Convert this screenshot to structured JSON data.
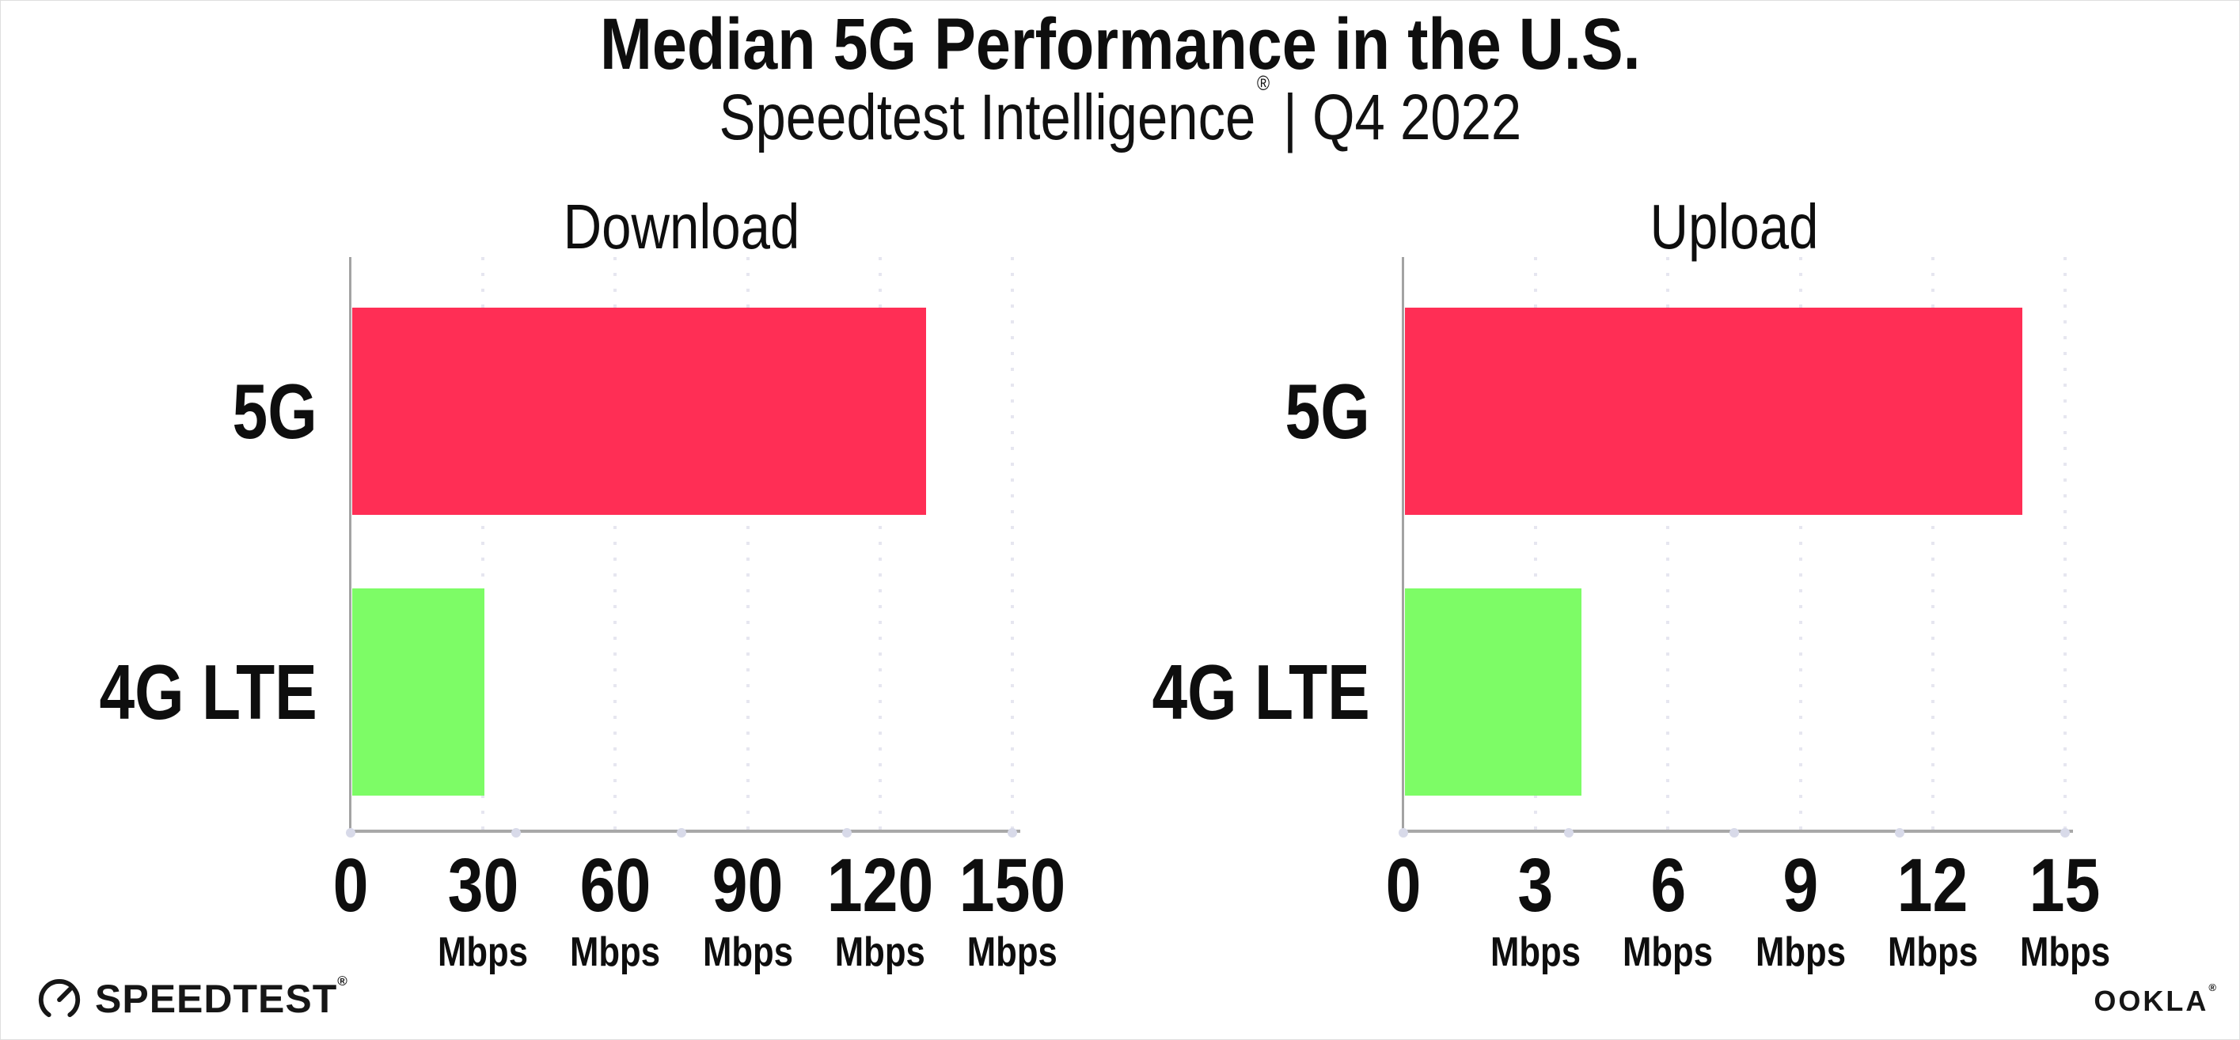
{
  "header": {
    "title": "Median 5G Performance in the U.S.",
    "subtitle_brand": "Speedtest Intelligence",
    "subtitle_reg": "®",
    "subtitle_rest": "| Q4 2022"
  },
  "colors": {
    "bar_5g": "#ff2e55",
    "bar_4g_lte": "#7dfc66",
    "bars": [
      "#ff2e55",
      "#7dfc66"
    ],
    "axis": "#a8a8a8",
    "gridline": "#e6e6f0",
    "axis_dot": "#d8dae9",
    "text": "#0e0e0e"
  },
  "chart_data": [
    {
      "type": "bar",
      "orientation": "horizontal",
      "title": "Download",
      "categories": [
        "5G",
        "4G LTE"
      ],
      "values": [
        130,
        30
      ],
      "unit": "Mbps",
      "xlim": [
        0,
        150
      ],
      "xticks": [
        0,
        30,
        60,
        90,
        120,
        150
      ],
      "grid": "dotted-vertical",
      "legend": "none"
    },
    {
      "type": "bar",
      "orientation": "horizontal",
      "title": "Upload",
      "categories": [
        "5G",
        "4G LTE"
      ],
      "values": [
        14,
        4
      ],
      "unit": "Mbps",
      "xlim": [
        0,
        15
      ],
      "xticks": [
        0,
        3,
        6,
        9,
        12,
        15
      ],
      "grid": "dotted-vertical",
      "legend": "none"
    }
  ],
  "footer": {
    "speedtest_text": "SPEEDTEST",
    "speedtest_mark": "®",
    "ookla_text": "OOKLA",
    "ookla_mark": "®"
  }
}
